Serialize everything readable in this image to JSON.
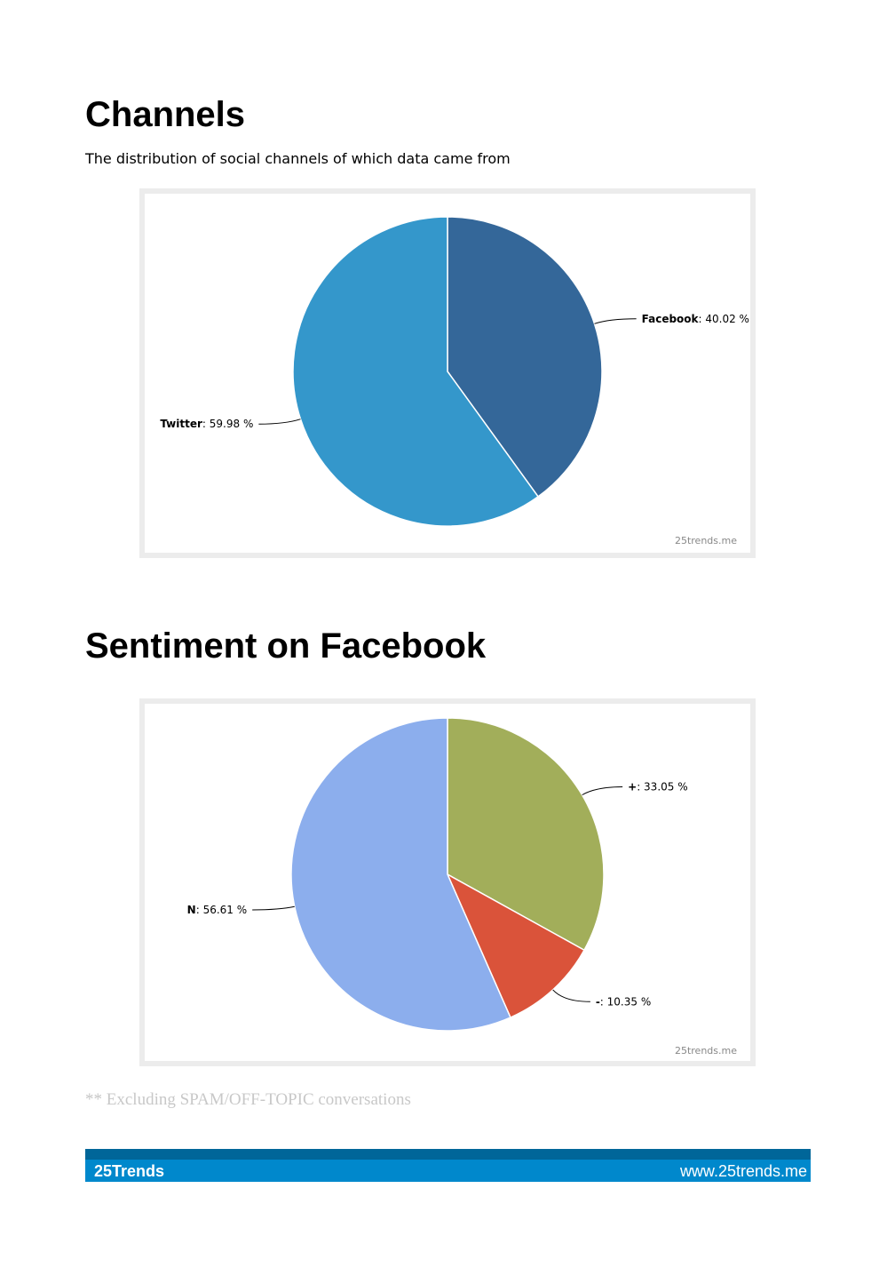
{
  "sections": [
    {
      "title": "Channels",
      "subtitle": "The distribution of social channels of which data came from"
    },
    {
      "title": "Sentiment on Facebook"
    }
  ],
  "chart_data": [
    {
      "type": "pie",
      "categories": [
        "Facebook",
        "Twitter"
      ],
      "values": [
        40.02,
        59.98
      ],
      "value_labels": [
        ": 40.02 %",
        ": 59.98 %"
      ],
      "colors": [
        "#346799",
        "#3497cb"
      ],
      "watermark": "25trends.me"
    },
    {
      "type": "pie",
      "categories": [
        "+",
        "-",
        "N"
      ],
      "values": [
        33.05,
        10.35,
        56.61
      ],
      "value_labels": [
        ": 33.05 %",
        ": 10.35 %",
        ": 56.61 %"
      ],
      "colors": [
        "#a2ae5a",
        "#da533a",
        "#8caeed"
      ],
      "watermark": "25trends.me"
    }
  ],
  "note": "** Excluding SPAM/OFF-TOPIC conversations",
  "footer": {
    "left": "25Trends",
    "right": "www.25trends.me"
  }
}
